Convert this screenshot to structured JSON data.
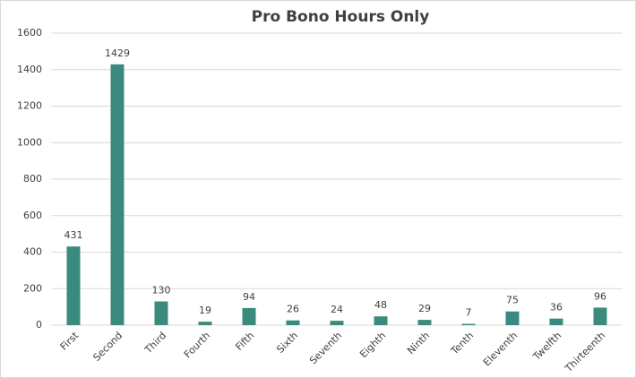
{
  "chart_data": {
    "type": "bar",
    "title": "Pro Bono Hours Only",
    "categories": [
      "First",
      "Second",
      "Third",
      "Fourth",
      "Fifth",
      "Sixth",
      "Seventh",
      "Eighth",
      "Ninth",
      "Tenth",
      "Eleventh",
      "Twelfth",
      "Thirteenth"
    ],
    "values": [
      431,
      1429,
      130,
      19,
      94,
      26,
      24,
      48,
      29,
      7,
      75,
      36,
      96
    ],
    "color": "#3b8a7e",
    "ylim": [
      0,
      1600
    ],
    "yticks": [
      0,
      200,
      400,
      600,
      800,
      1000,
      1200,
      1400,
      1600
    ],
    "grid": true
  }
}
